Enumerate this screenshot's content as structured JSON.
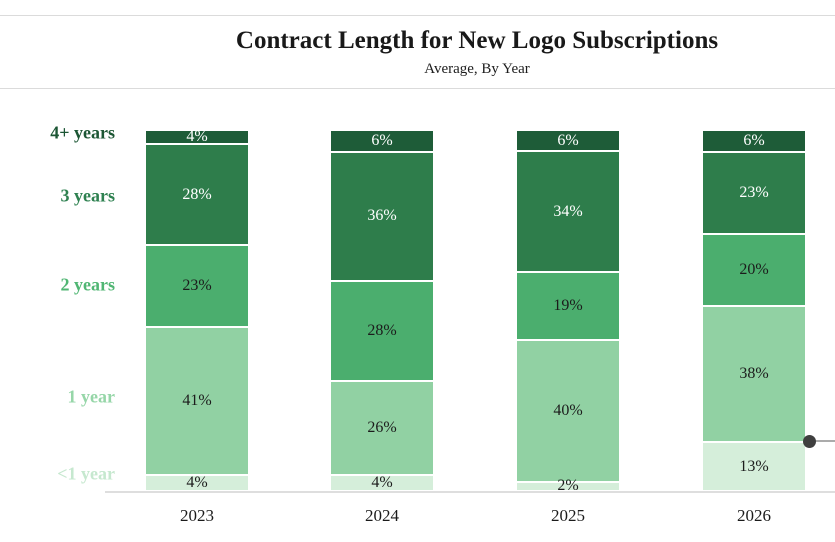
{
  "header": {
    "title": "Contract Length for New Logo Subscriptions",
    "subtitle": "Average, By Year"
  },
  "chart_data": {
    "type": "bar",
    "variant": "stacked-100-percent",
    "title": "Contract Length for New Logo Subscriptions",
    "subtitle": "Average, By Year",
    "categories": [
      "2023",
      "2024",
      "2025",
      "2026"
    ],
    "series": [
      {
        "name": "4+ years",
        "color": "#1e5c38",
        "label_text_color": "#ffffff",
        "axis_label_color": "#1c5634",
        "values": [
          4,
          6,
          6,
          6
        ]
      },
      {
        "name": "3 years",
        "color": "#2e7d4b",
        "label_text_color": "#ffffff",
        "axis_label_color": "#2e8150",
        "values": [
          28,
          36,
          34,
          23
        ]
      },
      {
        "name": "2 years",
        "color": "#4bae6e",
        "label_text_color": "#1c1c1c",
        "axis_label_color": "#50b673",
        "values": [
          23,
          28,
          19,
          20
        ]
      },
      {
        "name": "1 year",
        "color": "#91d1a3",
        "label_text_color": "#1c1c1c",
        "axis_label_color": "#96d6a8",
        "values": [
          41,
          26,
          40,
          38
        ]
      },
      {
        "name": "<1 year",
        "color": "#d5eeda",
        "label_text_color": "#1c1c1c",
        "axis_label_color": "#c6e8cf",
        "values": [
          4,
          4,
          2,
          13
        ]
      }
    ],
    "value_suffix": "%",
    "segment_labels": [
      [
        "4%",
        "6%",
        "6%",
        "6%"
      ],
      [
        "28%",
        "36%",
        "34%",
        "23%"
      ],
      [
        "23%",
        "28%",
        "19%",
        "20%"
      ],
      [
        "41%",
        "26%",
        "40%",
        "38%"
      ],
      [
        "4%",
        "4%",
        "2%",
        "13%"
      ]
    ],
    "ylim": [
      0,
      100
    ],
    "grid": false,
    "legend_position": "left-of-plot",
    "annotation_marker": {
      "category": "2026",
      "at_boundary": "1 year / <1 year",
      "boundary_percent_from_bottom": 13,
      "dot_color": "#3f3f3f",
      "line_color": "#ababab"
    }
  }
}
